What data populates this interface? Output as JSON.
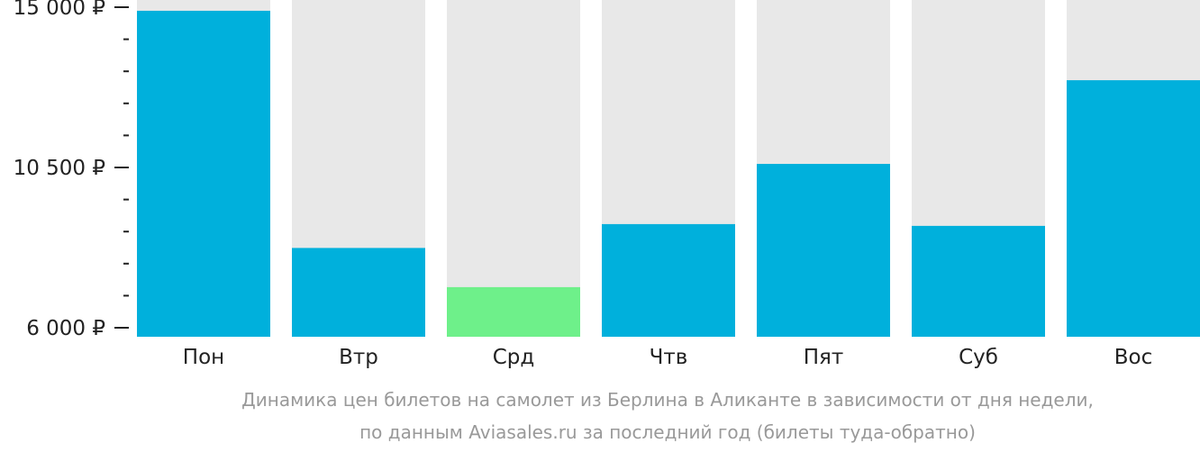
{
  "chart_data": {
    "type": "bar",
    "categories": [
      "Пон",
      "Втр",
      "Срд",
      "Чтв",
      "Пят",
      "Суб",
      "Вос"
    ],
    "values": [
      14900,
      8240,
      7140,
      8910,
      10600,
      8860,
      12950
    ],
    "ylim": [
      6000,
      15000
    ],
    "y_ticks": [
      {
        "value": 15000,
        "label": "15 000 ₽"
      },
      {
        "value": 10500,
        "label": "10 500 ₽"
      },
      {
        "value": 6000,
        "label": "6 000 ₽"
      }
    ],
    "y_minor_step": 900,
    "highlight_index": 2,
    "colors": {
      "bar": "#00b0dc",
      "highlight": "#6ef08a",
      "background_column": "#e8e8e8",
      "axis": "#222222"
    },
    "caption": [
      "Динамика цен билетов на самолет из Берлина в Аликанте в зависимости от дня недели,",
      "по данным Aviasales.ru за последний год (билеты туда-обратно)"
    ]
  }
}
